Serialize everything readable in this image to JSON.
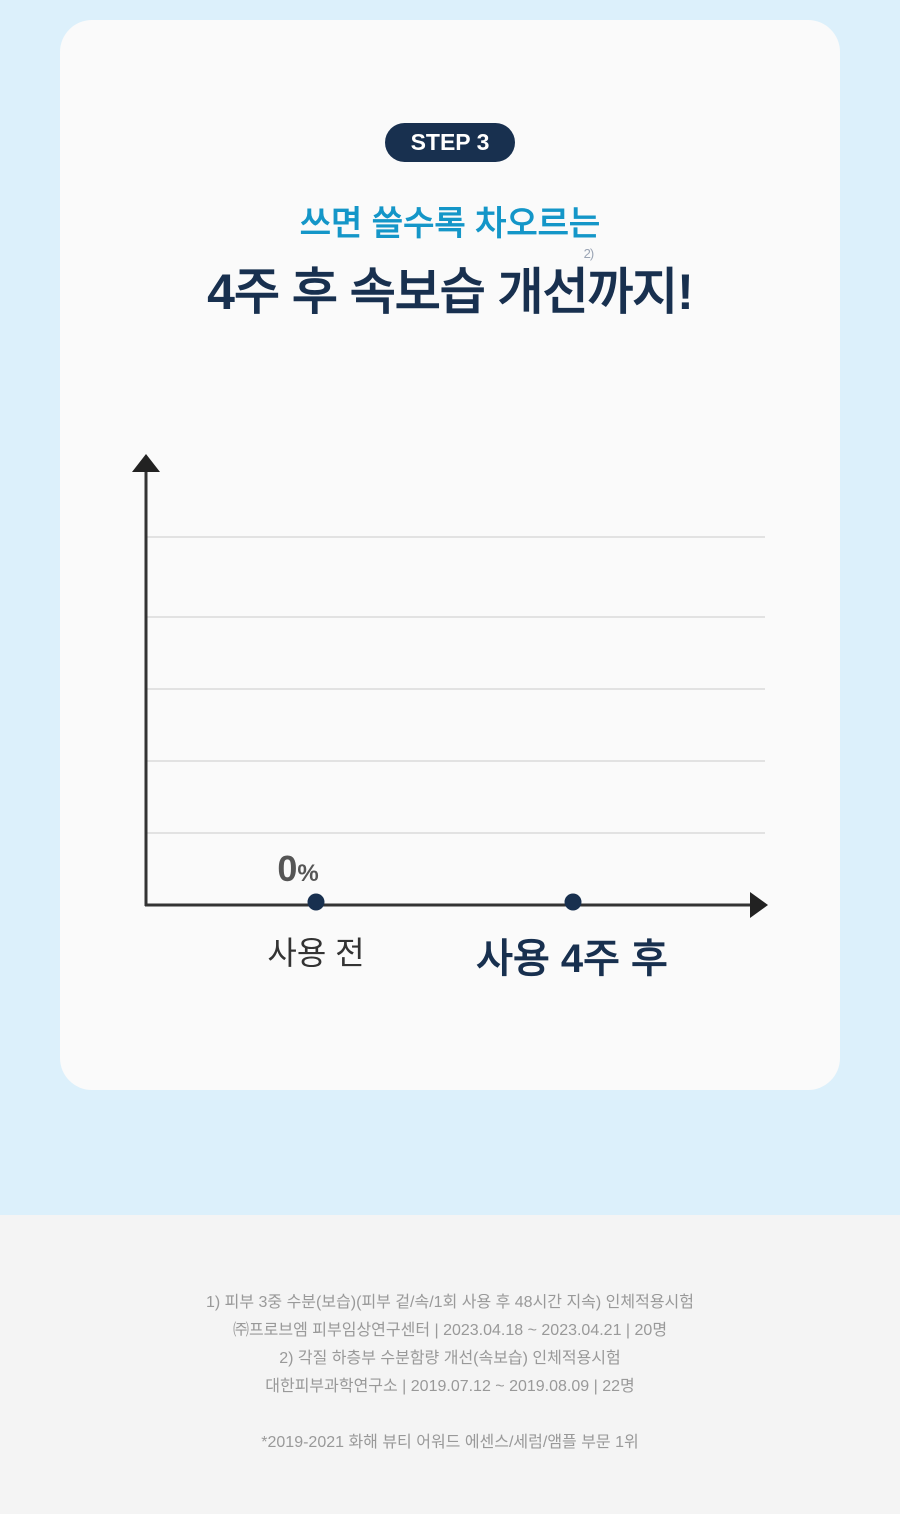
{
  "badge": "STEP 3",
  "subtitle": "쓰면 쓸수록 차오르는",
  "title": {
    "main": "4주 후 속보습 개선",
    "sup": "2)",
    "tail": "까지!"
  },
  "chart_data": {
    "type": "line",
    "categories": [
      "사용 전",
      "사용 4주 후"
    ],
    "values": [
      0,
      null
    ],
    "data_labels": {
      "value": "0",
      "unit": "%"
    },
    "grid": true,
    "colors": {
      "point": "#18304f",
      "axis": "#333333",
      "grid": "#e2e2e2"
    }
  },
  "footnotes": [
    "1) 피부 3중 수분(보습)(피부 겉/속/1회 사용 후 48시간 지속) 인체적용시험",
    "㈜프로브엠 피부임상연구센터 | 2023.04.18 ~ 2023.04.21 | 20명",
    "2) 각질 하층부 수분함량 개선(속보습) 인체적용시험",
    "대한피부과학연구소 | 2019.07.12 ~ 2019.08.09 | 22명",
    "*2019-2021 화해 뷰티 어워드 에센스/세럼/앰플 부문 1위"
  ]
}
